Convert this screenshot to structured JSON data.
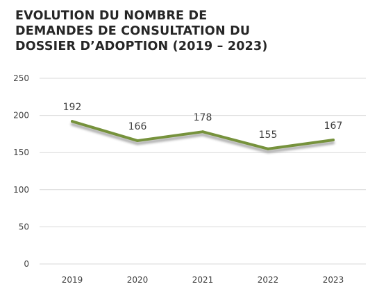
{
  "title_lines": [
    "EVOLUTION DU NOMBRE DE",
    "DEMANDES DE CONSULTATION DU",
    "DOSSIER D’ADOPTION (2019 – 2023)"
  ],
  "colors": {
    "line": "#76923c",
    "shadow": "#a6a6a6",
    "grid": "#d9d9d9",
    "text": "#404040",
    "title": "#262626"
  },
  "chart_data": {
    "type": "line",
    "title": "EVOLUTION DU NOMBRE DE DEMANDES DE CONSULTATION DU DOSSIER D’ADOPTION (2019 – 2023)",
    "categories": [
      "2019",
      "2020",
      "2021",
      "2022",
      "2023"
    ],
    "series": [
      {
        "values": [
          192,
          166,
          178,
          155,
          167
        ]
      }
    ],
    "data_labels": [
      "192",
      "166",
      "178",
      "155",
      "167"
    ],
    "y_ticks": [
      "0",
      "50",
      "100",
      "150",
      "200",
      "250"
    ],
    "ylim": [
      0,
      250
    ],
    "xlabel": "",
    "ylabel": "",
    "grid": true,
    "legend": "none"
  }
}
